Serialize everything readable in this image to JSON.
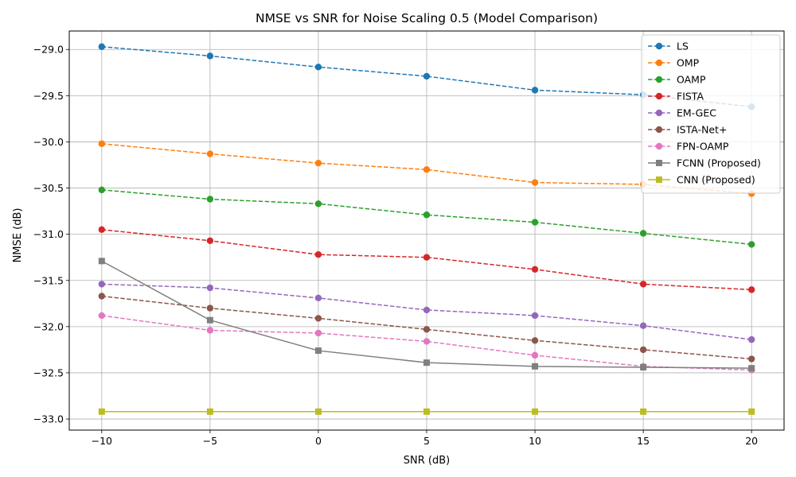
{
  "chart_data": {
    "type": "line",
    "title": "NMSE vs SNR for Noise Scaling 0.5 (Model Comparison)",
    "xlabel": "SNR (dB)",
    "ylabel": "NMSE (dB)",
    "x": [
      -10,
      -5,
      0,
      5,
      10,
      15,
      20
    ],
    "xlim": [
      -11.5,
      21.5
    ],
    "ylim": [
      -33.12,
      -28.8
    ],
    "xticks": [
      -10,
      -5,
      0,
      5,
      10,
      15,
      20
    ],
    "xtick_labels": [
      "−10",
      "−5",
      "0",
      "5",
      "10",
      "15",
      "20"
    ],
    "yticks": [
      -33.0,
      -32.5,
      -32.0,
      -31.5,
      -31.0,
      -30.5,
      -30.0,
      -29.5,
      -29.0
    ],
    "ytick_labels": [
      "−33.0",
      "−32.5",
      "−32.0",
      "−31.5",
      "−31.0",
      "−30.5",
      "−30.0",
      "−29.5",
      "−29.0"
    ],
    "grid": true,
    "legend_position": "top-right",
    "series": [
      {
        "name": "LS",
        "color": "#1f77b4",
        "linestyle": "dashed",
        "marker": "circle",
        "values": [
          -28.97,
          -29.07,
          -29.19,
          -29.29,
          -29.44,
          -29.49,
          -29.62
        ]
      },
      {
        "name": "OMP",
        "color": "#ff7f0e",
        "linestyle": "dashed",
        "marker": "circle",
        "values": [
          -30.02,
          -30.13,
          -30.23,
          -30.3,
          -30.44,
          -30.46,
          -30.56
        ]
      },
      {
        "name": "OAMP",
        "color": "#2ca02c",
        "linestyle": "dashed",
        "marker": "circle",
        "values": [
          -30.52,
          -30.62,
          -30.67,
          -30.79,
          -30.87,
          -30.99,
          -31.11
        ]
      },
      {
        "name": "FISTA",
        "color": "#d62728",
        "linestyle": "dashed",
        "marker": "circle",
        "values": [
          -30.95,
          -31.07,
          -31.22,
          -31.25,
          -31.38,
          -31.54,
          -31.6
        ]
      },
      {
        "name": "EM-GEC",
        "color": "#9467bd",
        "linestyle": "dashed",
        "marker": "circle",
        "values": [
          -31.54,
          -31.58,
          -31.69,
          -31.82,
          -31.88,
          -31.99,
          -32.14
        ]
      },
      {
        "name": "ISTA-Net+",
        "color": "#8c564b",
        "linestyle": "dashed",
        "marker": "circle",
        "values": [
          -31.67,
          -31.8,
          -31.91,
          -32.03,
          -32.15,
          -32.25,
          -32.35
        ]
      },
      {
        "name": "FPN-OAMP",
        "color": "#e377c2",
        "linestyle": "dashed",
        "marker": "circle",
        "values": [
          -31.88,
          -32.04,
          -32.07,
          -32.16,
          -32.31,
          -32.43,
          -32.47
        ]
      },
      {
        "name": "FCNN (Proposed)",
        "color": "#7f7f7f",
        "linestyle": "solid",
        "marker": "square",
        "values": [
          -31.29,
          -31.93,
          -32.26,
          -32.39,
          -32.43,
          -32.44,
          -32.45
        ]
      },
      {
        "name": "CNN (Proposed)",
        "color": "#bcbd22",
        "linestyle": "solid",
        "marker": "square",
        "values": [
          -32.92,
          -32.92,
          -32.92,
          -32.92,
          -32.92,
          -32.92,
          -32.92
        ]
      }
    ]
  }
}
